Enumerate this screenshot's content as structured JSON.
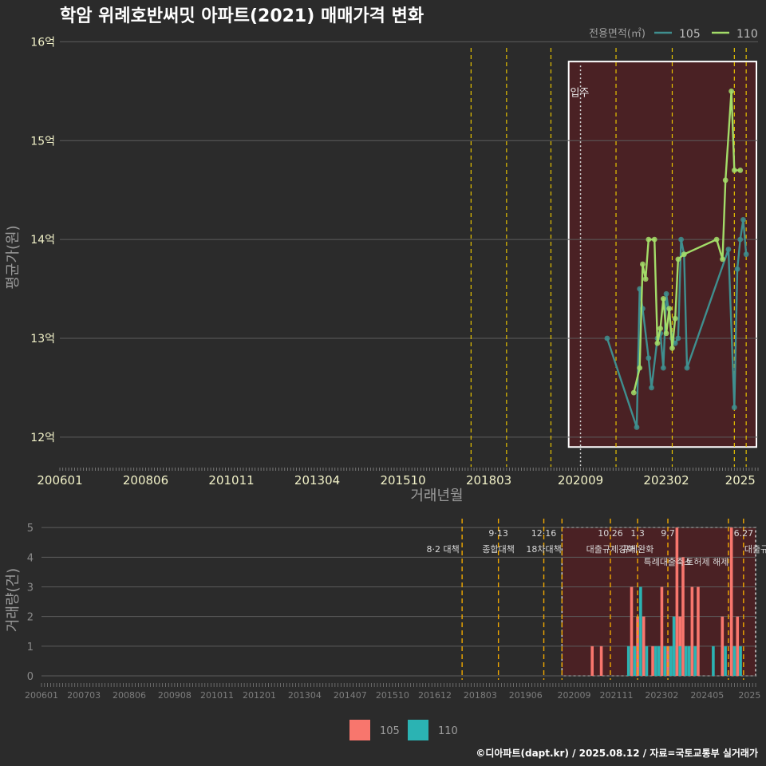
{
  "title": "학암 위례호반써밋 아파트(2021) 매매가격 변화",
  "credit": "©디아파트(dapt.kr) / 2025.08.12 / 자료=국토교통부 실거래가",
  "colors": {
    "background": "#2b2b2b",
    "series_105_line": "#3f8f8f",
    "series_110_line": "#a3dc68",
    "bar_105": "#f8766d",
    "bar_110": "#2bb3b3",
    "highlight_fill": "#4a2124",
    "event_line": "#e6c200",
    "event_line_bottom": "#f0a800"
  },
  "chart_data": [
    {
      "type": "line",
      "name": "price-chart",
      "xlabel": "거래년월",
      "ylabel": "평균가(원)",
      "y_ticks": [
        "12억",
        "13억",
        "14억",
        "15억",
        "16억"
      ],
      "y_tick_values": [
        12,
        13,
        14,
        15,
        16
      ],
      "ylim": [
        11.7,
        16.1
      ],
      "x_ticks": [
        "200601",
        "200806",
        "201011",
        "201304",
        "201510",
        "201803",
        "202009",
        "202302",
        "2025"
      ],
      "x_tick_months": [
        0,
        29,
        58,
        87,
        116,
        145,
        176,
        205,
        230
      ],
      "xlim_months": [
        0,
        236
      ],
      "legend_title": "전용면적(㎡)",
      "legend_position": "top-right",
      "annotation": "입주",
      "annotation_month": 176,
      "highlight_months": [
        172,
        236
      ],
      "highlight_ylim": [
        11.9,
        15.8
      ],
      "event_months": [
        139,
        151,
        166,
        188,
        207,
        228,
        232
      ],
      "series": [
        {
          "name": "105",
          "points": [
            [
              185,
              13.0
            ],
            [
              195,
              12.1
            ],
            [
              196,
              13.5
            ],
            [
              197,
              13.3
            ],
            [
              199,
              12.8
            ],
            [
              200,
              12.5
            ],
            [
              202,
              13.0
            ],
            [
              203,
              13.05
            ],
            [
              204,
              12.7
            ],
            [
              205,
              13.45
            ],
            [
              207,
              13.0
            ],
            [
              208,
              12.95
            ],
            [
              209,
              13.0
            ],
            [
              210,
              14.0
            ],
            [
              211,
              13.85
            ],
            [
              212,
              12.7
            ],
            [
              226,
              13.9
            ],
            [
              228,
              12.3
            ],
            [
              229,
              13.7
            ],
            [
              230,
              14.0
            ],
            [
              231,
              14.2
            ],
            [
              232,
              13.85
            ]
          ]
        },
        {
          "name": "110",
          "points": [
            [
              194,
              12.45
            ],
            [
              196,
              12.7
            ],
            [
              197,
              13.75
            ],
            [
              198,
              13.6
            ],
            [
              199,
              14.0
            ],
            [
              201,
              14.0
            ],
            [
              202,
              12.95
            ],
            [
              203,
              13.1
            ],
            [
              204,
              13.4
            ],
            [
              205,
              13.05
            ],
            [
              206,
              13.3
            ],
            [
              207,
              12.9
            ],
            [
              208,
              13.2
            ],
            [
              209,
              13.8
            ],
            [
              211,
              13.85
            ],
            [
              222,
              14.0
            ],
            [
              224,
              13.8
            ],
            [
              225,
              14.6
            ],
            [
              227,
              15.5
            ],
            [
              228,
              14.7
            ],
            [
              230,
              14.7
            ]
          ]
        }
      ]
    },
    {
      "type": "bar",
      "name": "volume-chart",
      "ylabel": "거래량(건)",
      "y_ticks": [
        "0",
        "1",
        "2",
        "3",
        "4",
        "5"
      ],
      "y_tick_values": [
        0,
        1,
        2,
        3,
        4,
        5
      ],
      "ylim": [
        0,
        5.3
      ],
      "x_ticks": [
        "200601",
        "200703",
        "200806",
        "200908",
        "201011",
        "201201",
        "201304",
        "201407",
        "201510",
        "201612",
        "201803",
        "201906",
        "202009",
        "202111",
        "202302",
        "202405",
        "2025"
      ],
      "x_tick_months": [
        0,
        14,
        29,
        44,
        58,
        72,
        87,
        102,
        116,
        130,
        145,
        160,
        176,
        190,
        205,
        220,
        234
      ],
      "xlim_months": [
        0,
        236
      ],
      "legend_position": "bottom",
      "legend": [
        "105",
        "110"
      ],
      "event_months": [
        139,
        151,
        166,
        172,
        188,
        197,
        207,
        227,
        232
      ],
      "events": [
        {
          "date": "",
          "label": "8·2 대책",
          "month": 139
        },
        {
          "date": "9·13",
          "label": "종합대책",
          "month": 151
        },
        {
          "date": "12·16",
          "label": "18차대책",
          "month": 166
        },
        {
          "date": "10.26",
          "label": "대출규제강화",
          "month": 188
        },
        {
          "date": "1.3",
          "label": "규제완화",
          "month": 197
        },
        {
          "date": "9.7",
          "label": "특례대출축소",
          "month": 207
        },
        {
          "date": "",
          "label": "토허제 해제",
          "month": 220
        },
        {
          "date": "6.27",
          "label": "대출규",
          "month": 232
        }
      ],
      "highlight_months": [
        172,
        236
      ],
      "bars_105": [
        [
          182,
          1
        ],
        [
          185,
          1
        ],
        [
          195,
          3
        ],
        [
          196,
          1
        ],
        [
          197,
          2
        ],
        [
          199,
          2
        ],
        [
          202,
          1
        ],
        [
          205,
          3
        ],
        [
          207,
          1
        ],
        [
          209,
          1
        ],
        [
          210,
          5
        ],
        [
          211,
          2
        ],
        [
          212,
          4
        ],
        [
          215,
          3
        ],
        [
          217,
          3
        ],
        [
          225,
          2
        ],
        [
          228,
          5
        ],
        [
          230,
          2
        ]
      ],
      "bars_110": [
        [
          194,
          1
        ],
        [
          196,
          1
        ],
        [
          198,
          3
        ],
        [
          200,
          1
        ],
        [
          203,
          1
        ],
        [
          204,
          1
        ],
        [
          206,
          1
        ],
        [
          208,
          1
        ],
        [
          209,
          2
        ],
        [
          211,
          1
        ],
        [
          213,
          1
        ],
        [
          214,
          1
        ],
        [
          216,
          1
        ],
        [
          222,
          1
        ],
        [
          226,
          1
        ],
        [
          229,
          1
        ],
        [
          231,
          1
        ]
      ]
    }
  ]
}
